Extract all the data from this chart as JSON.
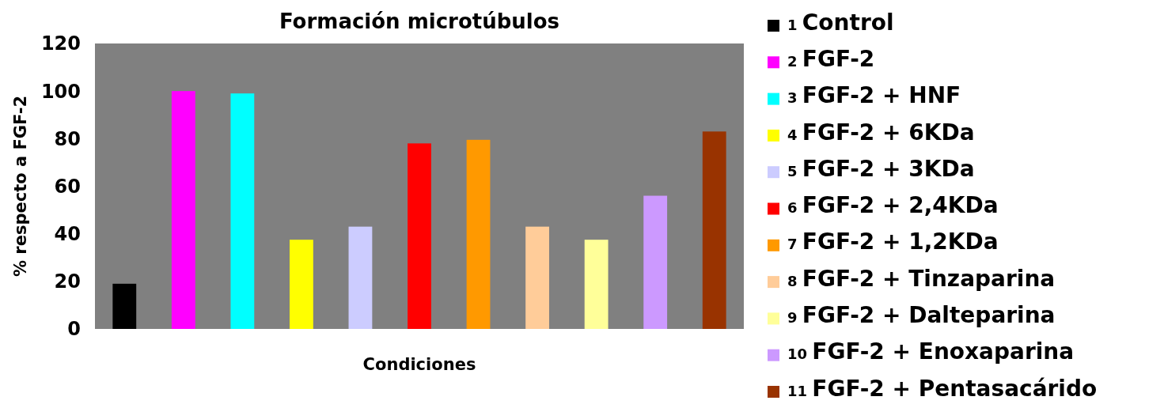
{
  "chart_data": {
    "type": "bar",
    "title": "Formación microtúbulos",
    "xlabel": "Condiciones",
    "ylabel": "% respecto a FGF-2",
    "categories": [
      null,
      null,
      null,
      null,
      null,
      null,
      null,
      null,
      null,
      null,
      null
    ],
    "series": [
      {
        "name": "1 Control",
        "color": "#000000",
        "values": [
          19,
          null,
          null,
          null,
          null,
          null,
          null,
          null,
          null,
          null,
          null
        ]
      },
      {
        "name": "2 FGF-2",
        "color": "#ff00ff",
        "values": [
          null,
          100,
          null,
          null,
          null,
          null,
          null,
          null,
          null,
          null,
          null
        ]
      },
      {
        "name": "3 FGF-2 + HNF",
        "color": "#00ffff",
        "values": [
          null,
          null,
          99,
          null,
          null,
          null,
          null,
          null,
          null,
          null,
          null
        ]
      },
      {
        "name": "4 FGF-2 + 6KDa",
        "color": "#ffff00",
        "values": [
          null,
          null,
          null,
          37.5,
          null,
          null,
          null,
          null,
          null,
          null,
          null
        ]
      },
      {
        "name": "5 FGF-2 + 3KDa",
        "color": "#ccccff",
        "values": [
          null,
          null,
          null,
          null,
          43,
          null,
          null,
          null,
          null,
          null,
          null
        ]
      },
      {
        "name": "6 FGF-2 + 2,4KDa",
        "color": "#ff0000",
        "values": [
          null,
          null,
          null,
          null,
          null,
          78,
          null,
          null,
          null,
          null,
          null
        ]
      },
      {
        "name": "7 FGF-2 + 1,2KDa",
        "color": "#ff9900",
        "values": [
          null,
          null,
          null,
          null,
          null,
          null,
          79.5,
          null,
          null,
          null,
          null
        ]
      },
      {
        "name": "8 FGF-2 + Tinzaparina",
        "color": "#ffcc99",
        "values": [
          null,
          null,
          null,
          null,
          null,
          null,
          null,
          43,
          null,
          null,
          null
        ]
      },
      {
        "name": "9 FGF-2 + Dalteparina",
        "color": "#ffff99",
        "values": [
          null,
          null,
          null,
          null,
          null,
          null,
          null,
          null,
          37.5,
          null,
          null
        ]
      },
      {
        "name": "10 FGF-2 + Enoxaparina",
        "color": "#cc99ff",
        "values": [
          null,
          null,
          null,
          null,
          null,
          null,
          null,
          null,
          null,
          56,
          null
        ]
      },
      {
        "name": "11 FGF-2 + Pentasacárido",
        "color": "#993300",
        "values": [
          null,
          null,
          null,
          null,
          null,
          null,
          null,
          null,
          null,
          null,
          83
        ]
      }
    ],
    "stacked": true,
    "ylim": [
      0,
      120
    ],
    "yticks": [
      0,
      20,
      40,
      60,
      80,
      100,
      120
    ],
    "grid": false,
    "legend": "right"
  }
}
